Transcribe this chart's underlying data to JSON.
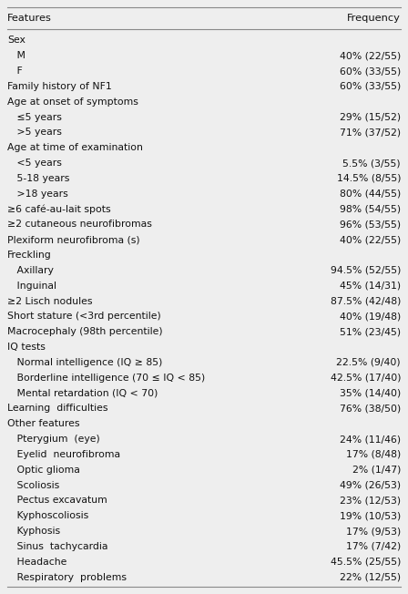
{
  "col_header": [
    "Features",
    "Frequency"
  ],
  "rows": [
    {
      "text": "Sex",
      "freq": "",
      "indent": 0
    },
    {
      "text": "   M",
      "freq": "40% (22/55)",
      "indent": 0
    },
    {
      "text": "   F",
      "freq": "60% (33/55)",
      "indent": 0
    },
    {
      "text": "Family history of NF1",
      "freq": "60% (33/55)",
      "indent": 0
    },
    {
      "text": "Age at onset of symptoms",
      "freq": "",
      "indent": 0
    },
    {
      "text": "   ≤5 years",
      "freq": "29% (15/52)",
      "indent": 0
    },
    {
      "text": "   >5 years",
      "freq": "71% (37/52)",
      "indent": 0
    },
    {
      "text": "Age at time of examination",
      "freq": "",
      "indent": 0
    },
    {
      "text": "   <5 years",
      "freq": "5.5% (3/55)",
      "indent": 0
    },
    {
      "text": "   5-18 years",
      "freq": "14.5% (8/55)",
      "indent": 0
    },
    {
      "text": "   >18 years",
      "freq": "80% (44/55)",
      "indent": 0
    },
    {
      "text": "≥6 café-au-lait spots",
      "freq": "98% (54/55)",
      "indent": 0
    },
    {
      "text": "≥2 cutaneous neurofibromas",
      "freq": "96% (53/55)",
      "indent": 0
    },
    {
      "text": "Plexiform neurofibroma (s)",
      "freq": "40% (22/55)",
      "indent": 0
    },
    {
      "text": "Freckling",
      "freq": "",
      "indent": 0
    },
    {
      "text": "   Axillary",
      "freq": "94.5% (52/55)",
      "indent": 0
    },
    {
      "text": "   Inguinal",
      "freq": "45% (14/31)",
      "indent": 0
    },
    {
      "text": "≥2 Lisch nodules",
      "freq": "87.5% (42/48)",
      "indent": 0
    },
    {
      "text": "Short stature (<3rd percentile)",
      "freq": "40% (19/48)",
      "indent": 0
    },
    {
      "text": "Macrocephaly (98th percentile)",
      "freq": "51% (23/45)",
      "indent": 0
    },
    {
      "text": "IQ tests",
      "freq": "",
      "indent": 0
    },
    {
      "text": "   Normal intelligence (IQ ≥ 85)",
      "freq": "22.5% (9/40)",
      "indent": 0
    },
    {
      "text": "   Borderline intelligence (70 ≤ IQ < 85)",
      "freq": "42.5% (17/40)",
      "indent": 0
    },
    {
      "text": "   Mental retardation (IQ < 70)",
      "freq": "35% (14/40)",
      "indent": 0
    },
    {
      "text": "Learning  difficulties",
      "freq": "76% (38/50)",
      "indent": 0
    },
    {
      "text": "Other features",
      "freq": "",
      "indent": 0
    },
    {
      "text": "   Pterygium  (eye)",
      "freq": "24% (11/46)",
      "indent": 0
    },
    {
      "text": "   Eyelid  neurofibroma",
      "freq": "17% (8/48)",
      "indent": 0
    },
    {
      "text": "   Optic glioma",
      "freq": "2% (1/47)",
      "indent": 0
    },
    {
      "text": "   Scoliosis",
      "freq": "49% (26/53)",
      "indent": 0
    },
    {
      "text": "   Pectus excavatum",
      "freq": "23% (12/53)",
      "indent": 0
    },
    {
      "text": "   Kyphoscoliosis",
      "freq": "19% (10/53)",
      "indent": 0
    },
    {
      "text": "   Kyphosis",
      "freq": "17% (9/53)",
      "indent": 0
    },
    {
      "text": "   Sinus  tachycardia",
      "freq": "17% (7/42)",
      "indent": 0
    },
    {
      "text": "   Headache",
      "freq": "45.5% (25/55)",
      "indent": 0
    },
    {
      "text": "   Respiratory  problems",
      "freq": "22% (12/55)",
      "indent": 0
    }
  ],
  "bg_color": "#eeeeee",
  "line_color": "#888888",
  "text_color": "#111111",
  "font_size": 7.8,
  "header_font_size": 8.2,
  "fig_width": 4.48,
  "fig_height": 6.52,
  "dpi": 100
}
